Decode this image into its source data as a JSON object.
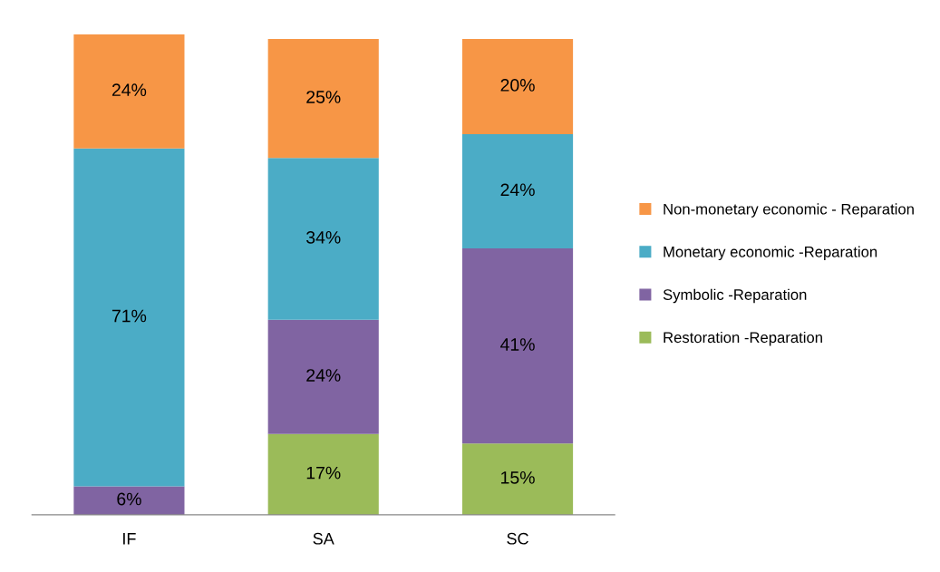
{
  "chart_data": {
    "type": "bar",
    "stacked": true,
    "categories": [
      "IF",
      "SA",
      "SC"
    ],
    "legend": "right",
    "grid": false,
    "series": [
      {
        "name": "Restoration -Reparation",
        "color": "#9bbb59",
        "values": [
          null,
          17,
          15
        ],
        "value_labels": [
          null,
          "17%",
          "15%"
        ]
      },
      {
        "name": "Symbolic -Reparation",
        "color": "#8064a2",
        "values": [
          6,
          24,
          41
        ],
        "value_labels": [
          "6%",
          "24%",
          "41%"
        ]
      },
      {
        "name": "Monetary economic -Reparation",
        "color": "#4bacc6",
        "values": [
          71,
          34,
          24
        ],
        "value_labels": [
          "71%",
          "34%",
          "24%"
        ]
      },
      {
        "name": "Non-monetary economic - Reparation",
        "color": "#f79646",
        "values": [
          24,
          25,
          20
        ],
        "value_labels": [
          "24%",
          "25%",
          "20%"
        ]
      }
    ]
  }
}
